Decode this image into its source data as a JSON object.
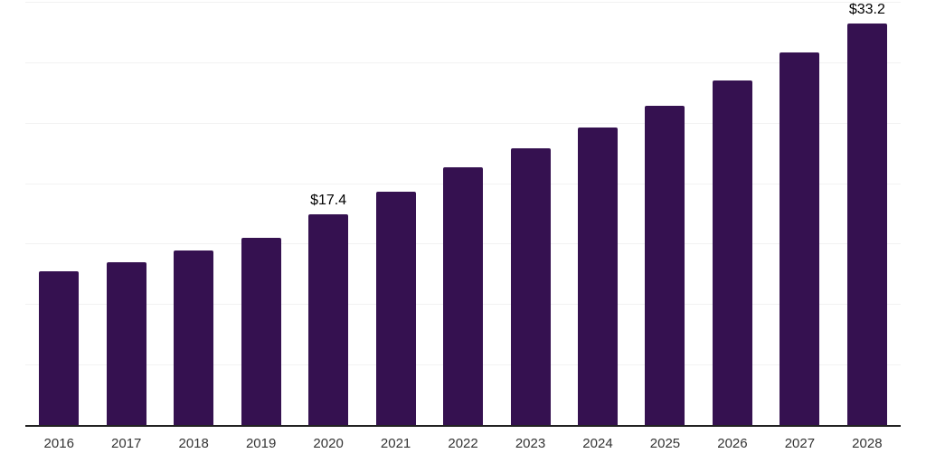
{
  "chart_data": {
    "type": "bar",
    "title": "",
    "xlabel": "",
    "ylabel": "",
    "categories": [
      "2016",
      "2017",
      "2018",
      "2019",
      "2020",
      "2021",
      "2022",
      "2023",
      "2024",
      "2025",
      "2026",
      "2027",
      "2028"
    ],
    "values": [
      12.7,
      13.5,
      14.4,
      15.5,
      17.4,
      19.3,
      21.3,
      22.9,
      24.6,
      26.4,
      28.5,
      30.8,
      33.2
    ],
    "data_labels": [
      "",
      "",
      "",
      "",
      "$17.4",
      "",
      "",
      "",
      "",
      "",
      "",
      "",
      "$33.2"
    ],
    "ylim": [
      0,
      35
    ],
    "gridline_step": 5,
    "grid": true,
    "legend": false,
    "colors": {
      "bar": "#351150",
      "gridline": "#f2f2f2",
      "axis_line": "#222222",
      "tick_label": "#333333",
      "data_label": "#000000",
      "background": "#ffffff"
    }
  }
}
